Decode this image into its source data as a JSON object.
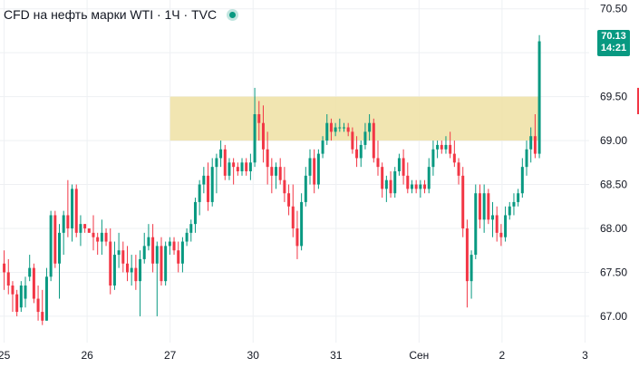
{
  "header": {
    "title": "CFD на нефть марки WTI · 1Ч · TVC",
    "status_icon": "market-open-dot"
  },
  "last_price": {
    "price": "70.13",
    "countdown": "14:21"
  },
  "colors": {
    "up": "#089981",
    "down": "#f23645",
    "zone_fill": "#f0e2a8",
    "grid": "#eef0f3",
    "axis_text": "#131722",
    "tag": "#089981"
  },
  "chart_data": {
    "type": "candlestick",
    "title": "CFD на нефть марки WTI · 1Ч · TVC",
    "xlabel": "",
    "ylabel": "",
    "ylim": [
      66.7,
      70.6
    ],
    "xlim": [
      -0.05,
      7.05
    ],
    "grid": true,
    "y_ticks": [
      "70.50",
      "70.00",
      "69.50",
      "69.00",
      "68.50",
      "68.00",
      "67.50",
      "67.00"
    ],
    "x_ticks": [
      {
        "label": "25",
        "x": 0
      },
      {
        "label": "26",
        "x": 1
      },
      {
        "label": "27",
        "x": 2
      },
      {
        "label": "30",
        "x": 3
      },
      {
        "label": "31",
        "x": 4
      },
      {
        "label": "Сен",
        "x": 5
      },
      {
        "label": "2",
        "x": 6
      },
      {
        "label": "3",
        "x": 7
      }
    ],
    "zone": {
      "x_start": 2.0,
      "x_end": 6.45,
      "y_low": 69.0,
      "y_high": 69.5
    },
    "series": [
      {
        "values": [
          67.6,
          67.75,
          67.3,
          67.5,
          67.5,
          67.65,
          67.25,
          67.35,
          67.35,
          67.4,
          67.05,
          67.25,
          67.25,
          67.3,
          67.0,
          67.05,
          67.1,
          67.4,
          67.05,
          67.35,
          67.2,
          67.45,
          67.1,
          67.35,
          67.45,
          67.7,
          67.4,
          67.55,
          67.55,
          67.6,
          67.15,
          67.2,
          67.2,
          67.35,
          66.95,
          67.05,
          67.05,
          67.3,
          66.9,
          66.95,
          66.95,
          67.55,
          66.95,
          67.45,
          67.45,
          68.2,
          67.4,
          68.15,
          68.15,
          68.2,
          67.55,
          67.6,
          67.6,
          68.05,
          67.2,
          67.95,
          67.95,
          68.2,
          67.7,
          68.15,
          68.15,
          68.55,
          67.9,
          68.0,
          68.0,
          68.5,
          67.85,
          68.45,
          68.45,
          68.5,
          67.9,
          67.95,
          67.95,
          68.15,
          67.8,
          68.05,
          68.05,
          68.05,
          67.95,
          68.0,
          68.0,
          68.0,
          67.95,
          67.95,
          67.95,
          68.15,
          67.75,
          67.9,
          67.9,
          67.95,
          67.7,
          67.85,
          67.85,
          68.1,
          67.7,
          67.95,
          67.95,
          68.0,
          67.8,
          67.85,
          67.85,
          68.0,
          67.25,
          67.35,
          67.35,
          67.85,
          67.3,
          67.7,
          67.7,
          67.95,
          67.55,
          67.75,
          67.75,
          67.85,
          67.5,
          67.6,
          67.6,
          67.8,
          67.4,
          67.5,
          67.5,
          67.7,
          67.35,
          67.55,
          67.55,
          67.7,
          67.3,
          67.4,
          67.4,
          67.75,
          67.0,
          67.65,
          67.65,
          67.95,
          67.6,
          67.8,
          67.8,
          68.05,
          67.75,
          67.9,
          67.9,
          68.05,
          67.5,
          67.6,
          67.6,
          67.85,
          67.0,
          67.8,
          67.8,
          67.9,
          67.35,
          67.4,
          67.4,
          67.85,
          67.35,
          67.8,
          67.8,
          67.9,
          67.7,
          67.85,
          67.85,
          67.9,
          67.7,
          67.75,
          67.75,
          67.85,
          67.5,
          67.6,
          67.6,
          67.9,
          67.5,
          67.85,
          67.85,
          68.0,
          67.8,
          67.95,
          67.95,
          68.1,
          67.85,
          68.05,
          68.05,
          68.35,
          67.95,
          68.3,
          68.3,
          68.55,
          68.15,
          68.5,
          68.5,
          68.7,
          68.4,
          68.6,
          68.6,
          68.75,
          68.2,
          68.3,
          68.3,
          68.8,
          68.25,
          68.7,
          68.7,
          68.85,
          68.4,
          68.8,
          68.8,
          69.0,
          68.7,
          68.9,
          68.9,
          68.95,
          68.55,
          68.6,
          68.6,
          68.8,
          68.55,
          68.75,
          68.75,
          68.8,
          68.5,
          68.7,
          68.7,
          68.75,
          68.6,
          68.65,
          68.65,
          68.8,
          68.6,
          68.75,
          68.75,
          68.8,
          68.6,
          68.65,
          68.65,
          68.85,
          68.55,
          68.75,
          68.75,
          69.6,
          68.7,
          69.3,
          69.3,
          69.45,
          69.0,
          69.2,
          69.2,
          69.4,
          68.75,
          68.9,
          68.9,
          69.1,
          68.5,
          68.7,
          68.7,
          68.8,
          68.4,
          68.6,
          68.6,
          68.75,
          68.45,
          68.7,
          68.7,
          68.8,
          68.5,
          68.55,
          68.55,
          68.7,
          68.3,
          68.4,
          68.4,
          68.5,
          68.15,
          68.25,
          68.25,
          68.5,
          67.9,
          68.0,
          68.0,
          68.2,
          67.65,
          67.8,
          67.8,
          68.4,
          67.75,
          68.3,
          68.3,
          68.7,
          68.25,
          68.6,
          68.6,
          68.9,
          68.5,
          68.8,
          68.8,
          68.9,
          68.4,
          68.5,
          68.5,
          68.9,
          68.45,
          68.85,
          68.85,
          69.05,
          68.8,
          69.0,
          69.0,
          69.3,
          68.95,
          69.2,
          69.2,
          69.25,
          69.0,
          69.1,
          69.1,
          69.2,
          69.05,
          69.15,
          69.15,
          69.25,
          69.1,
          69.15,
          69.15,
          69.2,
          69.1,
          69.15,
          69.15,
          69.2,
          69.05,
          69.1,
          69.1,
          69.15,
          68.85,
          68.9,
          68.9,
          69.05,
          68.7,
          68.8,
          68.8,
          69.0,
          68.7,
          68.95,
          68.95,
          69.2,
          68.9,
          69.1,
          69.1,
          69.3,
          69.0,
          69.2,
          69.2,
          69.25,
          68.75,
          68.8,
          68.8,
          69.0,
          68.6,
          68.7,
          68.7,
          68.75,
          68.35,
          68.45,
          68.45,
          68.6,
          68.3,
          68.55,
          68.55,
          68.65,
          68.35,
          68.4,
          68.4,
          68.7,
          68.35,
          68.65,
          68.65,
          68.85,
          68.6,
          68.8,
          68.8,
          68.9,
          68.5,
          68.6,
          68.6,
          68.75,
          68.4,
          68.45,
          68.45,
          68.55,
          68.4,
          68.5,
          68.5,
          68.55,
          68.4,
          68.45,
          68.45,
          68.55,
          68.35,
          68.5,
          68.5,
          68.55,
          68.4,
          68.45,
          68.45,
          68.8,
          68.4,
          68.7,
          68.7,
          69.0,
          68.6,
          68.9,
          68.9,
          69.0,
          68.8,
          68.95,
          68.95,
          69.0,
          68.85,
          68.9,
          68.9,
          69.05,
          68.85,
          68.95,
          68.95,
          69.1,
          68.8,
          68.85,
          68.85,
          69.0,
          68.7,
          68.75,
          68.75,
          68.8,
          68.5,
          68.6,
          68.6,
          68.7,
          67.9,
          68.0,
          68.0,
          68.1,
          67.1,
          67.4,
          67.4,
          67.75,
          67.2,
          67.7,
          67.7,
          68.5,
          67.65,
          68.4,
          68.4,
          68.5,
          68.0,
          68.1,
          68.1,
          68.5,
          67.95,
          68.4,
          68.4,
          68.45,
          68.05,
          68.1,
          68.1,
          68.3,
          67.9,
          68.15,
          68.15,
          68.25,
          67.85,
          67.95,
          67.95,
          68.05,
          67.8,
          67.9,
          67.9,
          68.25,
          67.85,
          68.15,
          68.15,
          68.3,
          68.1,
          68.25,
          68.25,
          68.4,
          68.15,
          68.3,
          68.3,
          68.45,
          68.25,
          68.4,
          68.4,
          68.8,
          68.35,
          68.7,
          68.7,
          69.0,
          68.6,
          68.9,
          68.9,
          69.15,
          68.75,
          69.05,
          69.05,
          69.3,
          68.8,
          68.85,
          68.85,
          70.2,
          68.8,
          70.13
        ]
      }
    ]
  }
}
